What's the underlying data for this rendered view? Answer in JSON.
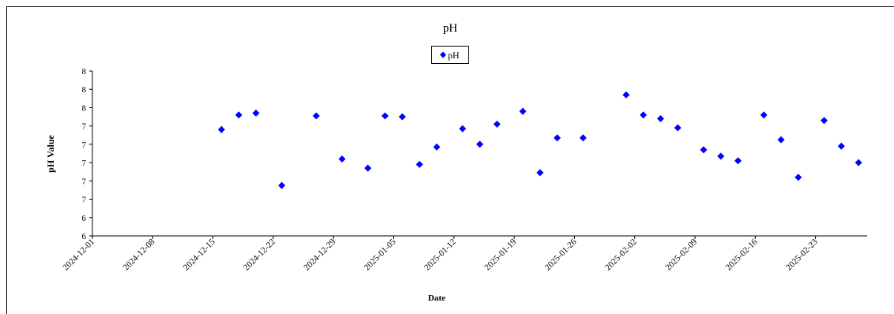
{
  "chart_data": {
    "type": "scatter",
    "title": "pH",
    "xlabel": "Date",
    "ylabel": "pH Value",
    "series": [
      {
        "name": "pH",
        "color": "#0000ff",
        "x": [
          "2024-12-16",
          "2024-12-18",
          "2024-12-20",
          "2024-12-23",
          "2024-12-27",
          "2024-12-30",
          "2025-01-02",
          "2025-01-04",
          "2025-01-06",
          "2025-01-08",
          "2025-01-10",
          "2025-01-13",
          "2025-01-15",
          "2025-01-17",
          "2025-01-20",
          "2025-01-22",
          "2025-01-24",
          "2025-01-27",
          "2025-02-01",
          "2025-02-03",
          "2025-02-05",
          "2025-02-07",
          "2025-02-10",
          "2025-02-12",
          "2025-02-14",
          "2025-02-17",
          "2025-02-19",
          "2025-02-21",
          "2025-02-24",
          "2025-02-26",
          "2025-02-28"
        ],
        "values": [
          7.36,
          7.52,
          7.54,
          6.75,
          7.51,
          7.04,
          6.94,
          7.51,
          7.5,
          6.98,
          7.17,
          7.37,
          7.2,
          7.42,
          7.56,
          6.89,
          7.27,
          7.27,
          7.74,
          7.52,
          7.48,
          7.38,
          7.14,
          7.07,
          7.02,
          7.52,
          7.25,
          6.84,
          7.46,
          7.18,
          7.0
        ]
      }
    ],
    "xlim": [
      "2024-12-01",
      "2025-03-01"
    ],
    "xticks": [
      "2024-12-01",
      "2024-12-08",
      "2024-12-15",
      "2024-12-22",
      "2024-12-29",
      "2025-01-05",
      "2025-01-12",
      "2025-01-19",
      "2025-01-26",
      "2025-02-02",
      "2025-02-09",
      "2025-02-16",
      "2025-02-23"
    ],
    "ylim": [
      6.2,
      8.0
    ],
    "yticks": [
      {
        "value": 6.2,
        "label": "6"
      },
      {
        "value": 6.4,
        "label": "6"
      },
      {
        "value": 6.6,
        "label": "7"
      },
      {
        "value": 6.8,
        "label": "7"
      },
      {
        "value": 7.0,
        "label": "7"
      },
      {
        "value": 7.2,
        "label": "7"
      },
      {
        "value": 7.4,
        "label": "7"
      },
      {
        "value": 7.6,
        "label": "8"
      },
      {
        "value": 7.8,
        "label": "8"
      },
      {
        "value": 8.0,
        "label": "8"
      }
    ],
    "legend": "top"
  }
}
